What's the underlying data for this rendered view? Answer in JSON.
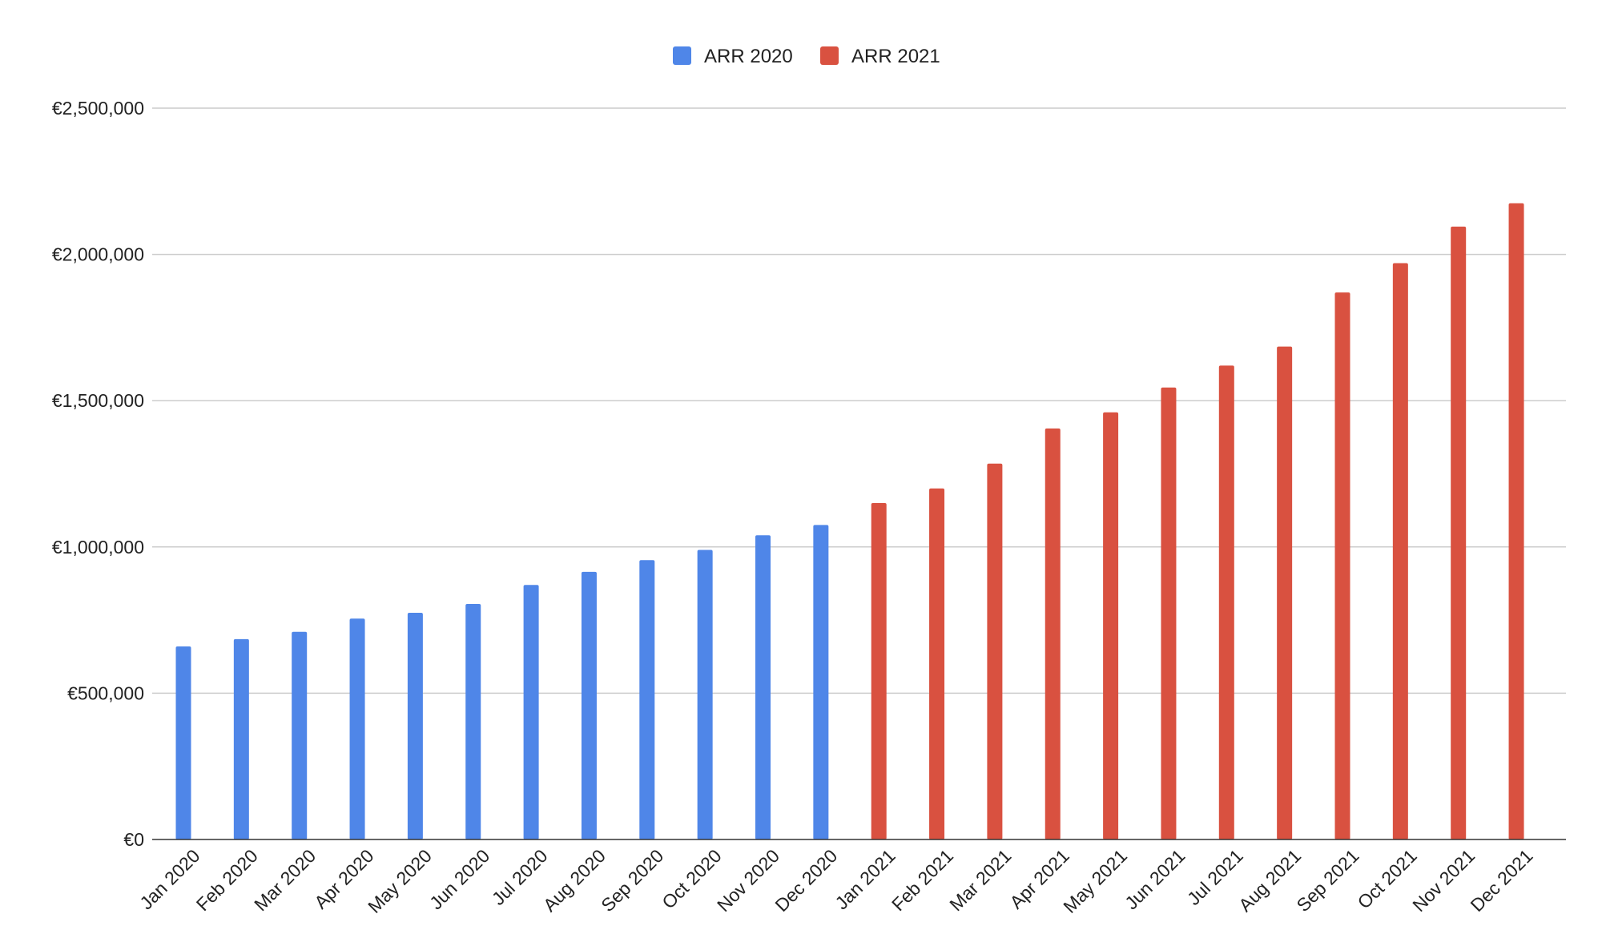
{
  "chart_data": {
    "type": "bar",
    "title": "",
    "xlabel": "",
    "ylabel": "",
    "ylim": [
      0,
      2500000
    ],
    "yticks": [
      0,
      500000,
      1000000,
      1500000,
      2000000,
      2500000
    ],
    "ytick_labels": [
      "€0",
      "€500,000",
      "€1,000,000",
      "€1,500,000",
      "€2,000,000",
      "€2,500,000"
    ],
    "grid": true,
    "legend_position": "top-center",
    "categories": [
      "Jan 2020",
      "Feb 2020",
      "Mar 2020",
      "Apr 2020",
      "May 2020",
      "Jun 2020",
      "Jul 2020",
      "Aug 2020",
      "Sep 2020",
      "Oct 2020",
      "Nov 2020",
      "Dec 2020",
      "Jan 2021",
      "Feb 2021",
      "Mar 2021",
      "Apr 2021",
      "May 2021",
      "Jun 2021",
      "Jul 2021",
      "Aug 2021",
      "Sep 2021",
      "Oct 2021",
      "Nov 2021",
      "Dec 2021"
    ],
    "series": [
      {
        "name": "ARR 2020",
        "color": "#4f86e8",
        "values": [
          660000,
          685000,
          710000,
          755000,
          775000,
          805000,
          870000,
          915000,
          955000,
          990000,
          1040000,
          1075000,
          null,
          null,
          null,
          null,
          null,
          null,
          null,
          null,
          null,
          null,
          null,
          null
        ]
      },
      {
        "name": "ARR 2021",
        "color": "#d95140",
        "values": [
          null,
          null,
          null,
          null,
          null,
          null,
          null,
          null,
          null,
          null,
          null,
          null,
          1150000,
          1200000,
          1285000,
          1405000,
          1460000,
          1545000,
          1620000,
          1685000,
          1870000,
          1970000,
          2095000,
          2175000
        ]
      }
    ]
  }
}
